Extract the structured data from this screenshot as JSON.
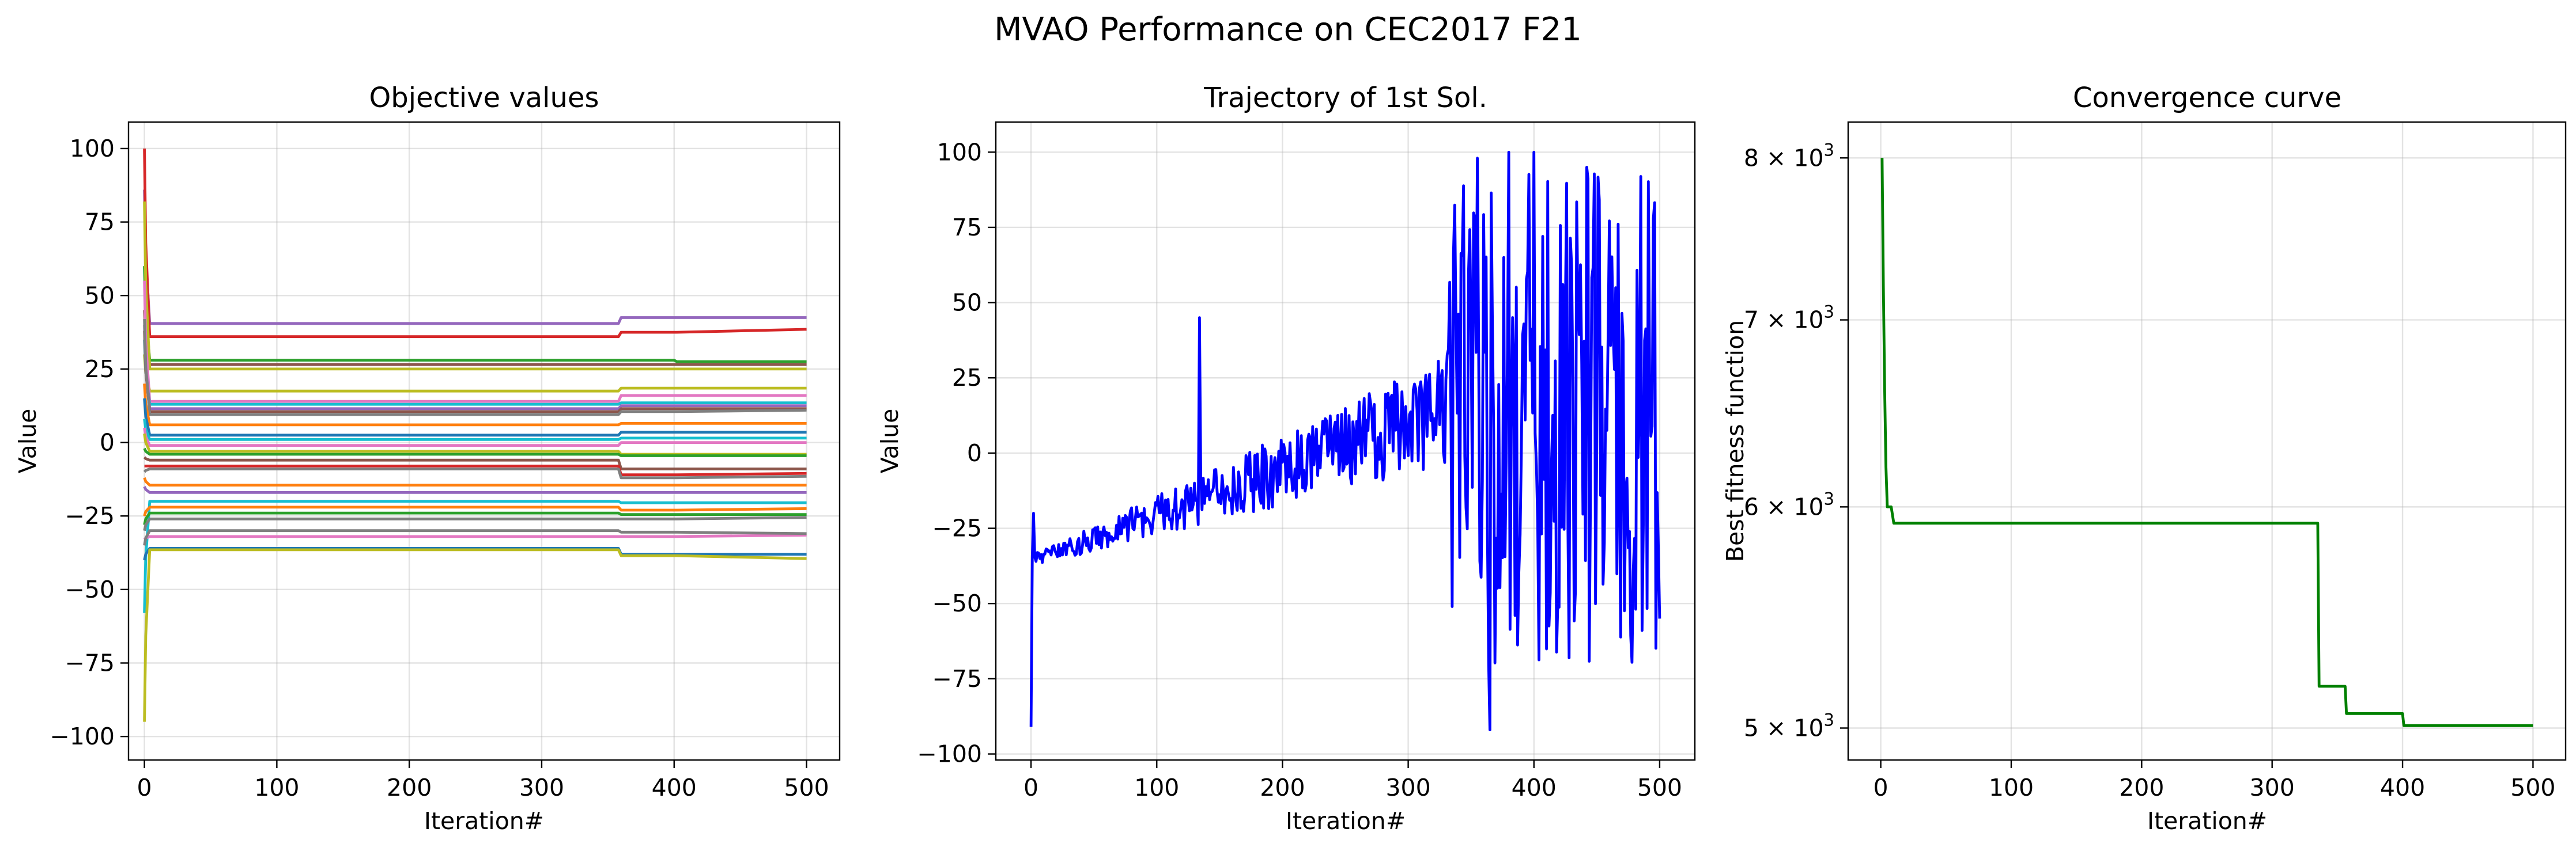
{
  "figure": {
    "suptitle": "MVAO Performance on CEC2017 F21"
  },
  "chart_data": [
    {
      "type": "line",
      "title": "Objective values",
      "xlabel": "Iteration#",
      "ylabel": "Value",
      "xlim": [
        -12,
        525
      ],
      "ylim": [
        -108,
        109
      ],
      "xticks": [
        "0",
        "100",
        "200",
        "300",
        "400",
        "500"
      ],
      "yticks": [
        "100",
        "75",
        "50",
        "25",
        "0",
        "−25",
        "−50",
        "−75",
        "−100"
      ],
      "grid": true,
      "series": [
        {
          "color": "#9467bd",
          "start": 86,
          "values": [
            40.5,
            40.5,
            42.5,
            42.5,
            42.5
          ]
        },
        {
          "color": "#d62728",
          "start": 100,
          "values": [
            36,
            36,
            37.5,
            37.5,
            38.5
          ]
        },
        {
          "color": "#2ca02c",
          "start": 60,
          "values": [
            28,
            28,
            28,
            27.5,
            27.5
          ]
        },
        {
          "color": "#8c564b",
          "start": 45,
          "values": [
            26.5,
            26.5,
            26.5,
            26.5,
            26.5
          ]
        },
        {
          "color": "#bcbd22",
          "start": 82,
          "values": [
            25,
            25,
            25,
            25,
            25
          ]
        },
        {
          "color": "#bcbd22",
          "start": 30,
          "values": [
            17.5,
            17.5,
            18.5,
            18.5,
            18.5
          ]
        },
        {
          "color": "#e377c2",
          "start": 55,
          "values": [
            14,
            14,
            16,
            16,
            16
          ]
        },
        {
          "color": "#17becf",
          "start": 35,
          "values": [
            13,
            13,
            13.5,
            13.5,
            13.5
          ]
        },
        {
          "color": "#9467bd",
          "start": 40,
          "values": [
            11.5,
            11.5,
            12.5,
            12.5,
            12.5
          ]
        },
        {
          "color": "#8c564b",
          "start": 38,
          "values": [
            10.5,
            10.5,
            11.5,
            11.5,
            11.5
          ]
        },
        {
          "color": "#7f7f7f",
          "start": 42,
          "values": [
            9.5,
            9.5,
            10.5,
            10.5,
            11
          ]
        },
        {
          "color": "#ff7f0e",
          "start": 20,
          "values": [
            6,
            6,
            6.5,
            6.5,
            6.5
          ]
        },
        {
          "color": "#1f77b4",
          "start": 15,
          "values": [
            2.5,
            2.5,
            3.5,
            3.5,
            3.5
          ]
        },
        {
          "color": "#17becf",
          "start": 8,
          "values": [
            1,
            1,
            1.5,
            1.5,
            1.5
          ]
        },
        {
          "color": "#e377c2",
          "start": 5,
          "values": [
            -1,
            -1,
            0,
            0,
            0
          ]
        },
        {
          "color": "#bcbd22",
          "start": 3,
          "values": [
            -3,
            -3,
            -4,
            -4,
            -4
          ]
        },
        {
          "color": "#2ca02c",
          "start": -2,
          "values": [
            -4,
            -4,
            -4.5,
            -4.5,
            -4.5
          ]
        },
        {
          "color": "#8c564b",
          "start": -5,
          "values": [
            -6,
            -6,
            -9,
            -9,
            -9
          ]
        },
        {
          "color": "#d62728",
          "start": -8,
          "values": [
            -8,
            -8,
            -11,
            -11,
            -10.5
          ]
        },
        {
          "color": "#7f7f7f",
          "start": -10,
          "values": [
            -9,
            -9,
            -12,
            -12,
            -11.5
          ]
        },
        {
          "color": "#ff7f0e",
          "start": -12,
          "values": [
            -14.5,
            -14.5,
            -14.5,
            -14.5,
            -14.5
          ]
        },
        {
          "color": "#9467bd",
          "start": -15,
          "values": [
            -17,
            -17,
            -17,
            -17,
            -17
          ]
        },
        {
          "color": "#17becf",
          "start": -58,
          "values": [
            -20,
            -20,
            -20.5,
            -20.5,
            -20.5
          ]
        },
        {
          "color": "#ff7f0e",
          "start": -25,
          "values": [
            -22,
            -22,
            -23,
            -23,
            -22.5
          ]
        },
        {
          "color": "#2ca02c",
          "start": -28,
          "values": [
            -24,
            -24,
            -24.5,
            -24.5,
            -24.5
          ]
        },
        {
          "color": "#7f7f7f",
          "start": -30,
          "values": [
            -26,
            -26,
            -26,
            -26,
            -25.5
          ]
        },
        {
          "color": "#e377c2",
          "start": -33,
          "values": [
            -32,
            -32,
            -32,
            -32,
            -31.5
          ]
        },
        {
          "color": "#7f7f7f",
          "start": -35,
          "values": [
            -30,
            -30,
            -30.5,
            -30.5,
            -31
          ]
        },
        {
          "color": "#1f77b4",
          "start": -40,
          "values": [
            -36,
            -36,
            -38,
            -38,
            -38
          ]
        },
        {
          "color": "#bcbd22",
          "start": -95,
          "values": [
            -36.5,
            -36.5,
            -38.5,
            -38.5,
            -39.5
          ]
        }
      ]
    },
    {
      "type": "line",
      "title": "Trajectory of 1st Sol.",
      "xlabel": "Iteration#",
      "ylabel": "Value",
      "xlim": [
        -28,
        528
      ],
      "ylim": [
        -102,
        110
      ],
      "xticks": [
        "0",
        "100",
        "200",
        "300",
        "400",
        "500"
      ],
      "yticks": [
        "100",
        "75",
        "50",
        "25",
        "0",
        "−25",
        "−50",
        "−75",
        "−100"
      ],
      "grid": true,
      "color": "#0000ff",
      "keypoints": [
        [
          0,
          -91
        ],
        [
          2,
          -20
        ],
        [
          4,
          -36
        ],
        [
          134,
          45
        ],
        [
          335,
          -51
        ],
        [
          355,
          98
        ],
        [
          365,
          -92
        ],
        [
          380,
          100
        ],
        [
          400,
          100
        ],
        [
          442,
          95
        ],
        [
          495,
          78
        ],
        [
          500,
          -55
        ]
      ]
    },
    {
      "type": "line",
      "title": "Convergence curve",
      "xlabel": "Iteration#",
      "ylabel": "Best fitness function",
      "yscale": "log",
      "xlim": [
        -25,
        525
      ],
      "ylim": [
        4870,
        8240
      ],
      "xticks": [
        "0",
        "100",
        "200",
        "300",
        "400",
        "500"
      ],
      "yticks": [
        {
          "value": 8000,
          "base": "8 × 10",
          "exp": "3"
        },
        {
          "value": 7000,
          "base": "7 × 10",
          "exp": "3"
        },
        {
          "value": 6000,
          "base": "6 × 10",
          "exp": "3"
        },
        {
          "value": 5000,
          "base": "5 × 10",
          "exp": "3"
        }
      ],
      "grid": true,
      "color": "#008000",
      "x": [
        1,
        2,
        3,
        4,
        5,
        8,
        10,
        335,
        336,
        356,
        357,
        400,
        401,
        500
      ],
      "y": [
        8000,
        7200,
        6600,
        6200,
        6000,
        6000,
        5920,
        5920,
        5175,
        5175,
        5060,
        5060,
        5010,
        5010
      ]
    }
  ]
}
